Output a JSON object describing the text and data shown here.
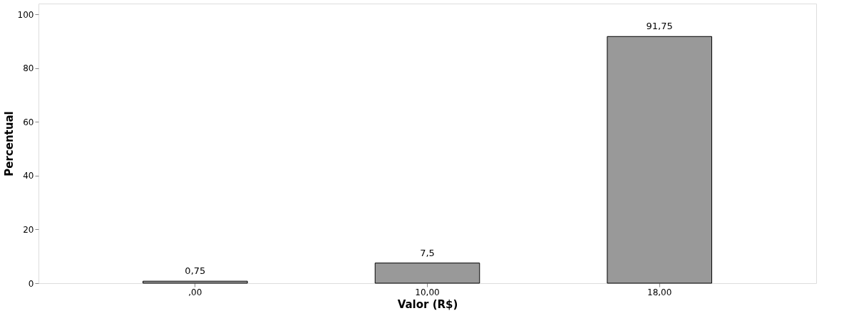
{
  "chart_data": {
    "type": "bar",
    "xlabel": "Valor (R$)",
    "ylabel": "Percentual",
    "categories": [
      ",00",
      "10,00",
      "18,00"
    ],
    "values": [
      0.75,
      7.5,
      91.75
    ],
    "value_labels": [
      "0,75",
      "7,5",
      "91,75"
    ],
    "color": "#999999",
    "ylim": [
      0,
      104
    ],
    "yticks": [
      0,
      20,
      40,
      60,
      80,
      100
    ],
    "grid": false
  }
}
